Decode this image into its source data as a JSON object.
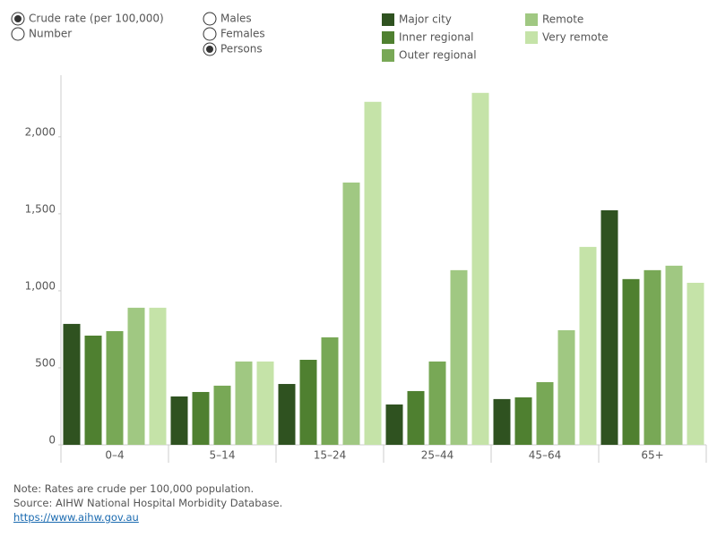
{
  "controls": {
    "measure": {
      "options": [
        "Crude rate (per 100,000)",
        "Number"
      ],
      "selected_index": 0
    },
    "sex": {
      "options": [
        "Males",
        "Females",
        "Persons"
      ],
      "selected_index": 2
    }
  },
  "chart_data": {
    "type": "bar",
    "categories": [
      "0–4",
      "5–14",
      "15–24",
      "25–44",
      "45–64",
      "65+"
    ],
    "series": [
      {
        "name": "Major city",
        "color": "#2f5220",
        "values": [
          785,
          314,
          395,
          262,
          297,
          1523
        ]
      },
      {
        "name": "Inner regional",
        "color": "#4f8030",
        "values": [
          709,
          343,
          552,
          349,
          308,
          1076
        ]
      },
      {
        "name": "Outer regional",
        "color": "#78a856",
        "values": [
          738,
          384,
          698,
          541,
          407,
          1134
        ]
      },
      {
        "name": "Remote",
        "color": "#a0c882",
        "values": [
          890,
          541,
          1703,
          1134,
          744,
          1163
        ]
      },
      {
        "name": "Very remote",
        "color": "#c5e3a8",
        "values": [
          890,
          541,
          2227,
          2285,
          1285,
          1052
        ]
      }
    ],
    "ylim": [
      0,
      2400
    ],
    "yticks": [
      0,
      500,
      {
        "value": 1000,
        "label": "1,000"
      },
      {
        "value": 1500,
        "label": "1,500"
      },
      {
        "value": 2000,
        "label": "2,000"
      }
    ],
    "legend_position": "top"
  },
  "footer": {
    "note": "Note: Rates are crude per 100,000 population.",
    "source": "Source: AIHW National Hospital Morbidity Database.",
    "link": "https://www.aihw.gov.au"
  }
}
